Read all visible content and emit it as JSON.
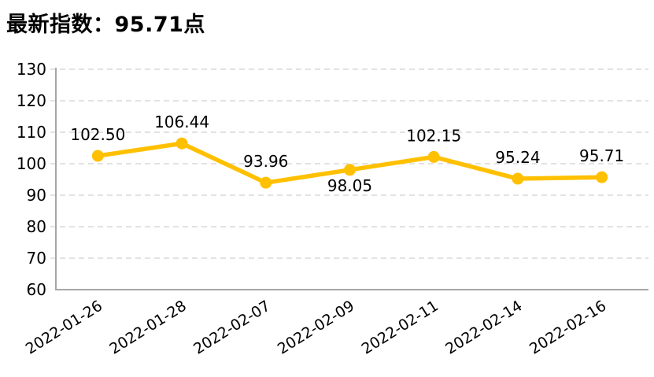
{
  "header": {
    "title": "最新指数：95.71点"
  },
  "colors": {
    "line": "#FFC000",
    "marker": "#FFC000",
    "gridline": "#D9D9D9",
    "axis": "#A6A6A6",
    "text": "#000000"
  },
  "chart_data": {
    "type": "line",
    "title": "最新指数：95.71点",
    "x": [
      "2022-01-26",
      "2022-01-28",
      "2022-02-07",
      "2022-02-09",
      "2022-02-11",
      "2022-02-14",
      "2022-02-16"
    ],
    "series": [
      {
        "name": "指数",
        "values": [
          102.5,
          106.44,
          93.96,
          98.05,
          102.15,
          95.24,
          95.71
        ]
      }
    ],
    "data_labels": [
      "102.50",
      "106.44",
      "93.96",
      "98.05",
      "102.15",
      "95.24",
      "95.71"
    ],
    "label_positions": [
      "above",
      "above",
      "above",
      "below",
      "above",
      "above",
      "above"
    ],
    "ylim": [
      60,
      130
    ],
    "ytick_step": 10,
    "yticks": [
      "60",
      "70",
      "80",
      "90",
      "100",
      "110",
      "120",
      "130"
    ],
    "xlabel": "",
    "ylabel": "",
    "grid": "horizontal-dashed",
    "legend": "none",
    "x_label_rotation_deg": -32
  }
}
